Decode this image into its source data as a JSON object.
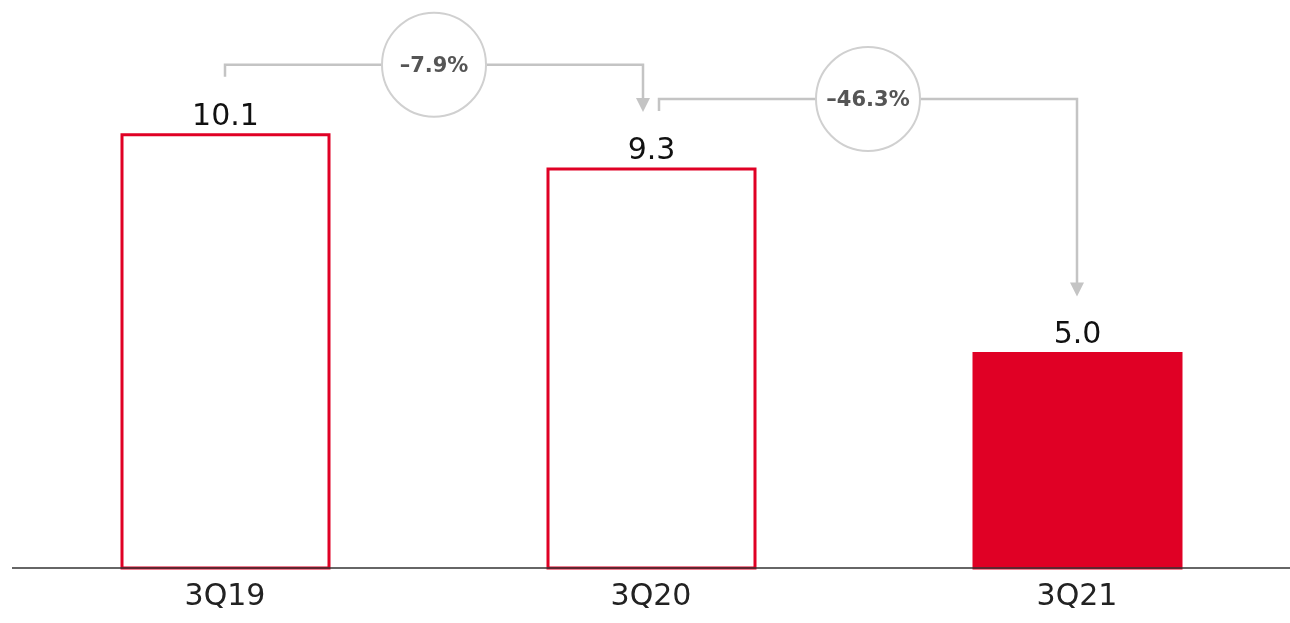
{
  "chart_data": {
    "type": "bar",
    "categories": [
      "3Q19",
      "3Q20",
      "3Q21"
    ],
    "values": [
      10.1,
      9.3,
      5.0
    ],
    "color": "#e00025",
    "colors": [
      "#ffffff",
      "#ffffff",
      "#e00025"
    ],
    "value_labels": [
      "10.1",
      "9.3",
      "5.0"
    ],
    "annotations": [
      "–7.9%",
      "–46.3%"
    ]
  }
}
